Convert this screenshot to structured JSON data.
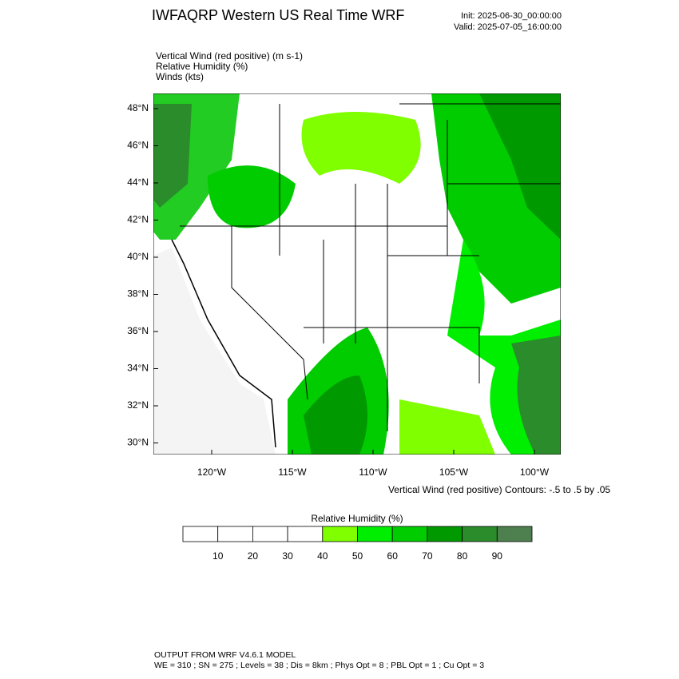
{
  "title": "IWFAQRP Western US Real Time WRF",
  "init": "Init: 2025-06-30_00:00:00",
  "valid": "Valid: 2025-07-05_16:00:00",
  "fields": [
    "Vertical Wind (red positive)   (m s-1)",
    "Relative Humidity   (%)",
    "Winds   (kts)"
  ],
  "lat_labels": [
    "48°N",
    "46°N",
    "44°N",
    "42°N",
    "40°N",
    "38°N",
    "36°N",
    "34°N",
    "32°N",
    "30°N"
  ],
  "lon_labels": [
    "120°W",
    "115°W",
    "110°W",
    "105°W",
    "100°W"
  ],
  "contour_note": "Vertical Wind (red positive) Contours: -.5 to .5 by .05",
  "colorbar": {
    "title": "Relative Humidity  (%)",
    "labels": [
      10,
      20,
      30,
      40,
      50,
      60,
      70,
      80,
      90
    ],
    "colors": [
      "#ffffff",
      "#ffffff",
      "#ffffff",
      "#ffffff",
      "#7fff00",
      "#00ee00",
      "#00cc00",
      "#009900",
      "#2a8c2a",
      "#4e7f4e"
    ]
  },
  "footer": [
    "OUTPUT FROM WRF V4.6.1 MODEL",
    "WE = 310 ; SN = 275 ; Levels = 38 ; Dis = 8km ; Phys Opt = 8 ; PBL Opt = 1 ; Cu Opt = 3"
  ]
}
